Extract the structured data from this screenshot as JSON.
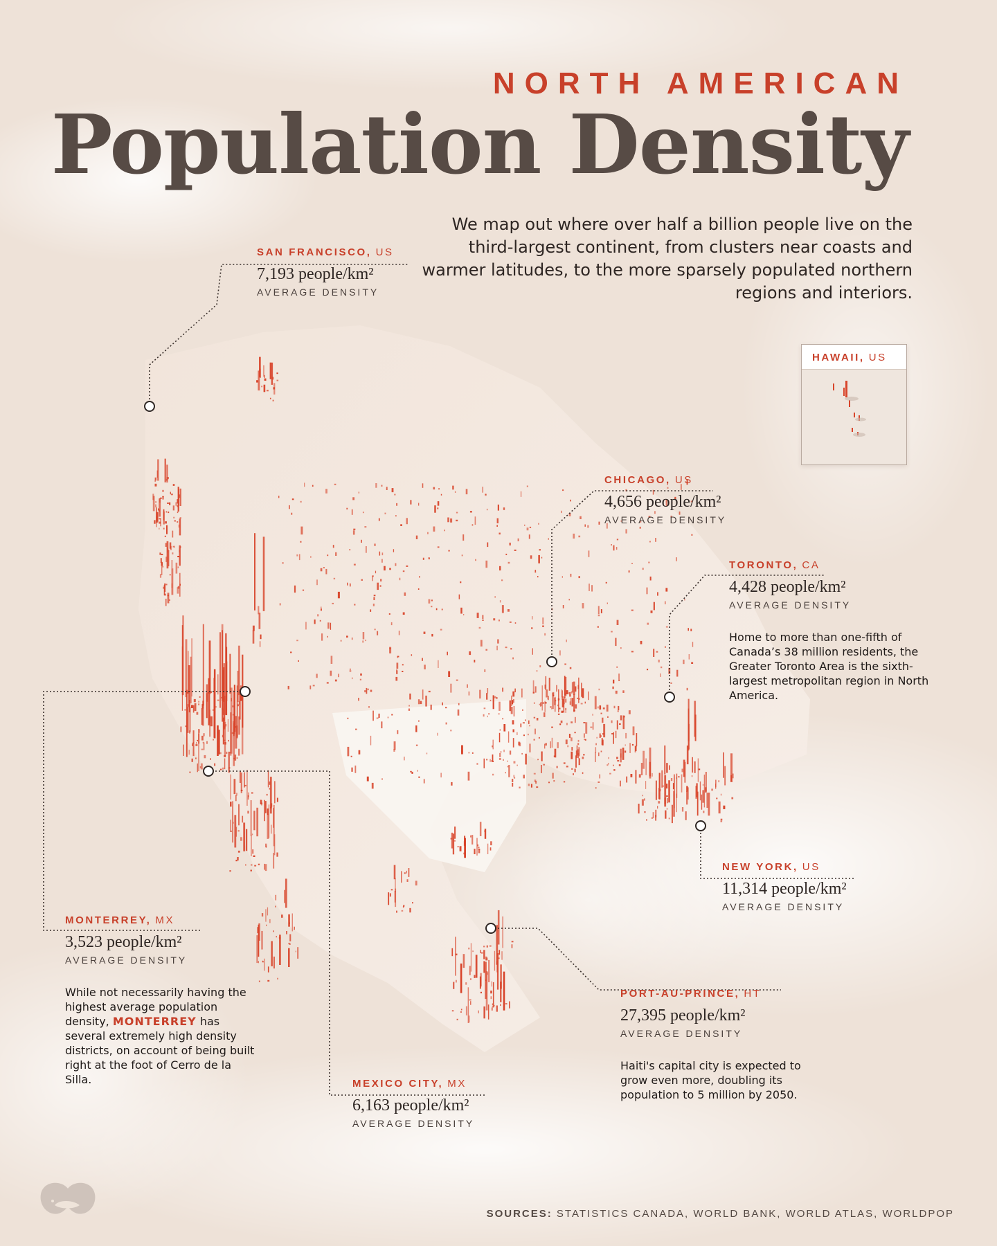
{
  "header": {
    "kicker": "NORTH AMERICAN",
    "title": "Population Density",
    "subtitle": "We map out where over half a billion people live on the third-largest continent, from clusters near coasts and warmer latitudes, to the more sparsely populated northern regions and interiors."
  },
  "colors": {
    "accent": "#c8402a",
    "spike": "#d8442a",
    "land": "#f3e9e1",
    "text": "#2e2623"
  },
  "callouts": [
    {
      "id": "san_francisco",
      "city": "SAN FRANCISCO,",
      "country": "US",
      "value": "7,193 people/km²",
      "label": "AVERAGE DENSITY",
      "density": 7193
    },
    {
      "id": "chicago",
      "city": "CHICAGO,",
      "country": "US",
      "value": "4,656 people/km²",
      "label": "AVERAGE DENSITY",
      "density": 4656
    },
    {
      "id": "toronto",
      "city": "TORONTO,",
      "country": "CA",
      "value": "4,428 people/km²",
      "label": "AVERAGE DENSITY",
      "density": 4428,
      "note": "Home to more than one-fifth of Canada’s 38 million residents, the Greater Toronto Area is the sixth-largest metropolitan region in North America."
    },
    {
      "id": "new_york",
      "city": "NEW YORK,",
      "country": "US",
      "value": "11,314 people/km²",
      "label": "AVERAGE DENSITY",
      "density": 11314
    },
    {
      "id": "monterrey",
      "city": "MONTERREY,",
      "country": "MX",
      "value": "3,523 people/km²",
      "label": "AVERAGE DENSITY",
      "density": 3523,
      "note_pre": "While not necessarily having the highest average population density, ",
      "note_hl": "MONTERREY",
      "note_post": " has several extremely high density districts, on account of being built right at the foot of Cerro de la Silla."
    },
    {
      "id": "mexico_city",
      "city": "MEXICO CITY,",
      "country": "MX",
      "value": "6,163 people/km²",
      "label": "AVERAGE DENSITY",
      "density": 6163
    },
    {
      "id": "port_au_prince",
      "city": "PORT-AU-PRINCE,",
      "country": "HT",
      "value": "27,395 people/km²",
      "label": "AVERAGE DENSITY",
      "density": 27395,
      "note": "Haiti's capital city is expected to grow even more, doubling its population to 5 million by 2050."
    }
  ],
  "inset": {
    "city": "HAWAII,",
    "country": "US"
  },
  "footer": {
    "sources_label": "SOURCES:",
    "sources": "STATISTICS CANADA, WORLD BANK, WORLD ATLAS, WORLDPOP"
  },
  "logo": {
    "icon": "brand-logo-icon"
  }
}
